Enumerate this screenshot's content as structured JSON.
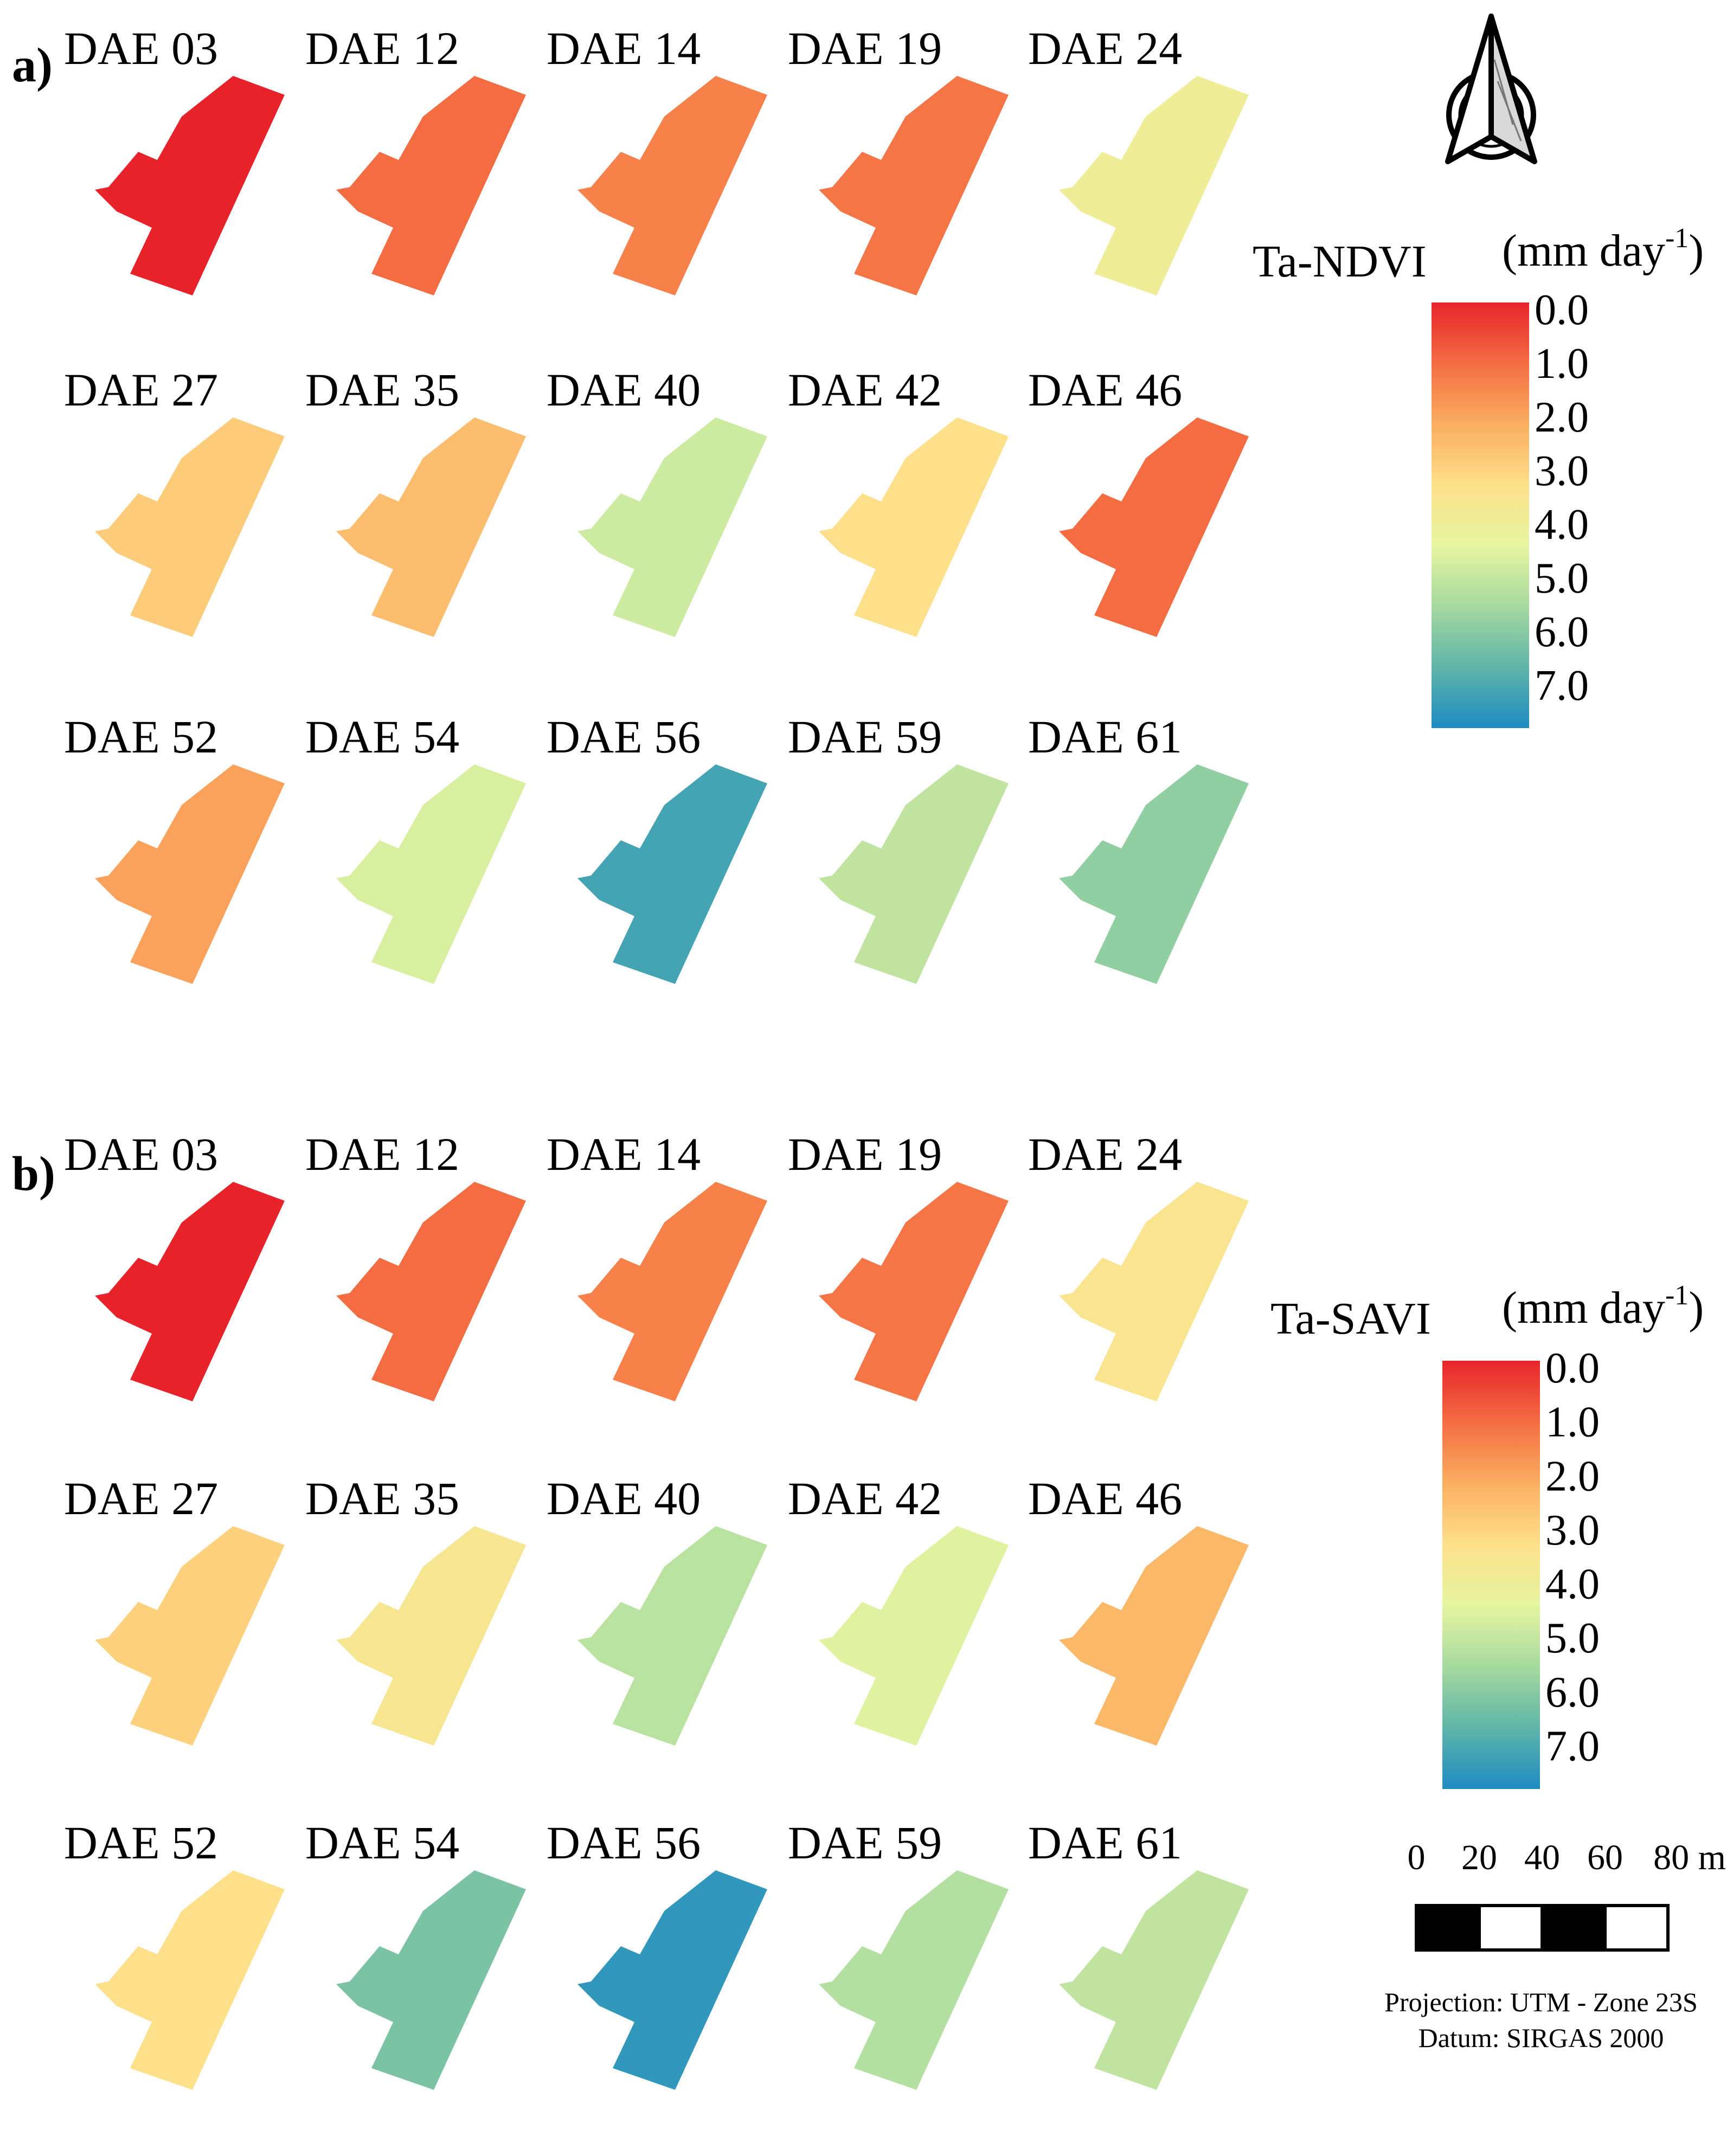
{
  "panels": [
    {
      "letter": "a)",
      "legend_title": "Ta-NDVI",
      "maps": [
        {
          "label": "DAE 03",
          "value": 0.0
        },
        {
          "label": "DAE 12",
          "value": 1.0
        },
        {
          "label": "DAE 14",
          "value": 1.3
        },
        {
          "label": "DAE 19",
          "value": 1.1
        },
        {
          "label": "DAE 24",
          "value": 3.6
        },
        {
          "label": "DAE 27",
          "value": 2.6
        },
        {
          "label": "DAE 35",
          "value": 2.3
        },
        {
          "label": "DAE 40",
          "value": 4.4
        },
        {
          "label": "DAE 42",
          "value": 3.0
        },
        {
          "label": "DAE 46",
          "value": 1.0
        },
        {
          "label": "DAE 52",
          "value": 1.8
        },
        {
          "label": "DAE 54",
          "value": 4.2
        },
        {
          "label": "DAE 56",
          "value": 6.4
        },
        {
          "label": "DAE 59",
          "value": 4.6
        },
        {
          "label": "DAE 61",
          "value": 5.3
        }
      ]
    },
    {
      "letter": "b)",
      "legend_title": "Ta-SAVI",
      "maps": [
        {
          "label": "DAE 03",
          "value": 0.0
        },
        {
          "label": "DAE 12",
          "value": 1.0
        },
        {
          "label": "DAE 14",
          "value": 1.3
        },
        {
          "label": "DAE 19",
          "value": 1.1
        },
        {
          "label": "DAE 24",
          "value": 3.2
        },
        {
          "label": "DAE 27",
          "value": 2.7
        },
        {
          "label": "DAE 35",
          "value": 3.3
        },
        {
          "label": "DAE 40",
          "value": 4.7
        },
        {
          "label": "DAE 42",
          "value": 4.1
        },
        {
          "label": "DAE 46",
          "value": 2.2
        },
        {
          "label": "DAE 52",
          "value": 3.0
        },
        {
          "label": "DAE 54",
          "value": 5.6
        },
        {
          "label": "DAE 56",
          "value": 6.7
        },
        {
          "label": "DAE 59",
          "value": 4.8
        },
        {
          "label": "DAE 61",
          "value": 4.6
        }
      ]
    }
  ],
  "legend_unit_main": "(mm day",
  "legend_unit_sup": "-1",
  "legend_unit_close": ")",
  "legend_ticks": [
    "0.0",
    "1.0",
    "2.0",
    "3.0",
    "4.0",
    "5.0",
    "6.0",
    "7.0"
  ],
  "colors": {
    "ramp": [
      "#e8242a",
      "#f46d43",
      "#fbae61",
      "#fee08b",
      "#e6f5a0",
      "#a6d9a0",
      "#5fb5a8",
      "#1e8bc3"
    ]
  },
  "scale_bar": {
    "labels": [
      "0",
      "20",
      "40",
      "60",
      "80 m"
    ]
  },
  "projection": "Projection: UTM - Zone 23S",
  "datum": "Datum: SIRGAS 2000",
  "north_arrow": "north-arrow-icon"
}
